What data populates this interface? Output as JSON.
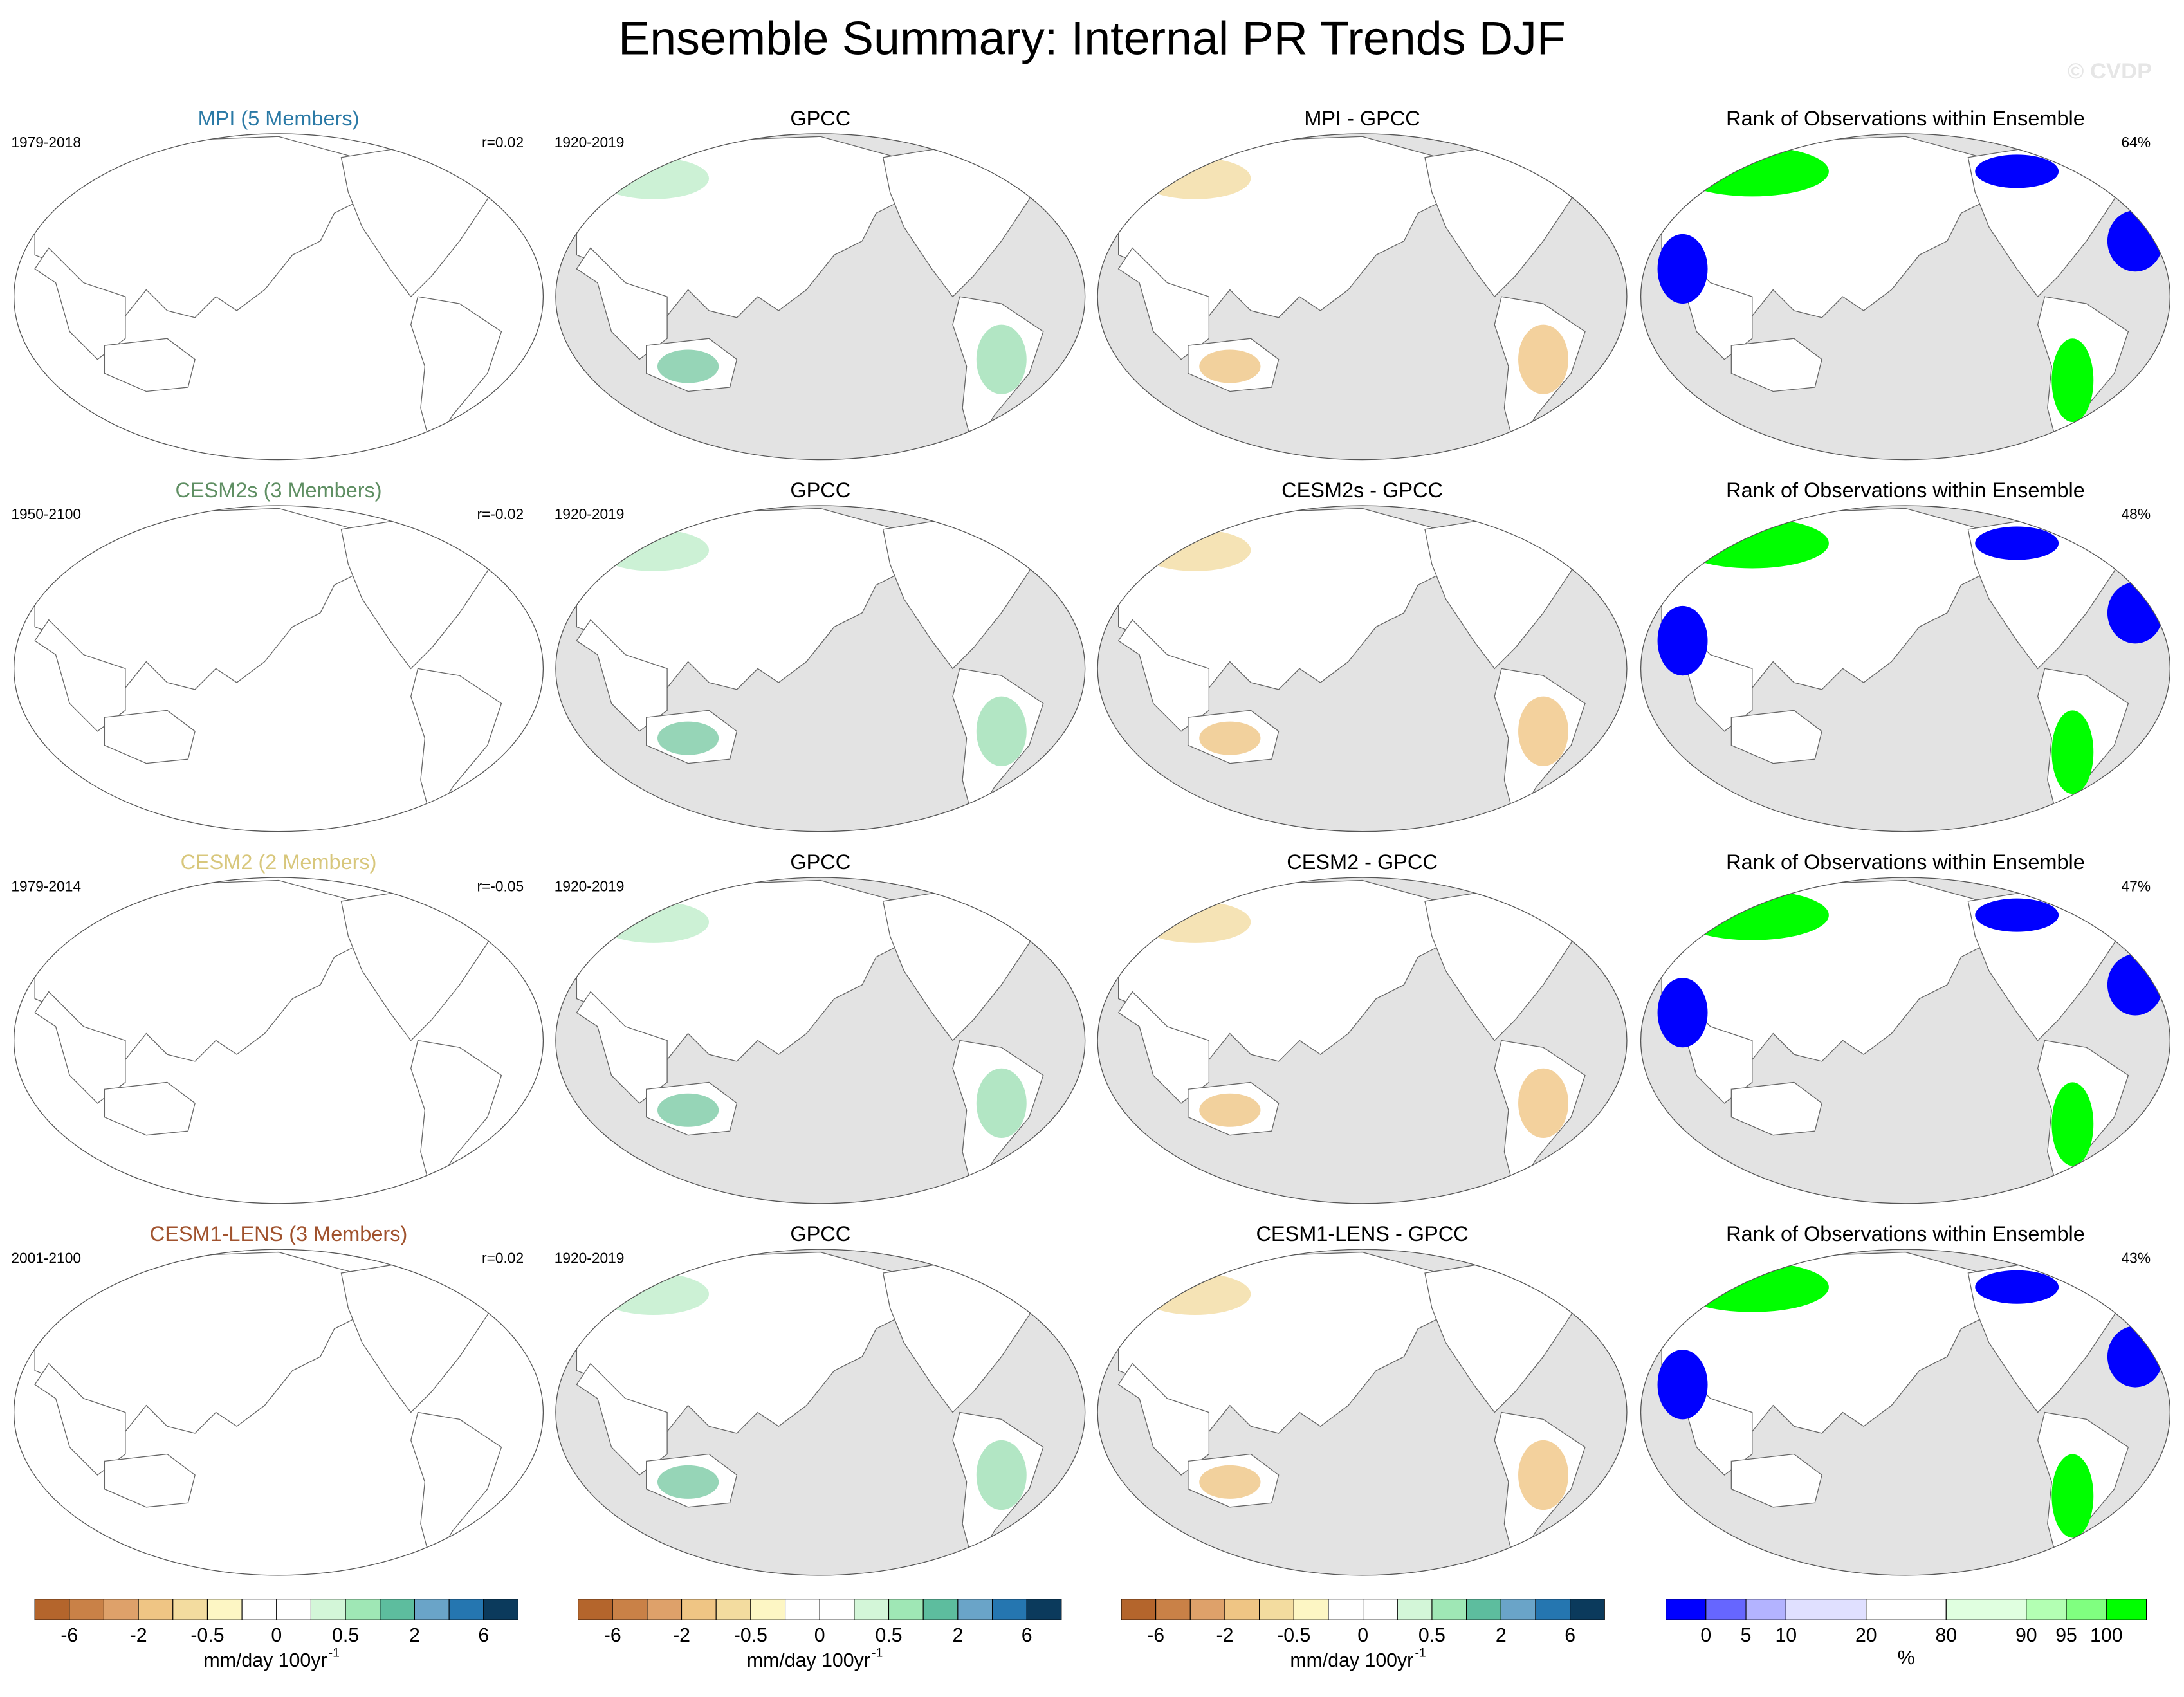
{
  "title": "Ensemble Summary: Internal PR Trends DJF",
  "watermark": "© CVDP",
  "rows": [
    {
      "model": "MPI (5 Members)",
      "model_color": "#2b7aa6",
      "period": "1979-2018",
      "r": "r=0.02",
      "obs": "GPCC",
      "obs_period": "1920-2019",
      "diff": "MPI - GPCC",
      "rank_title": "Rank of Observations within Ensemble",
      "rank": "64%"
    },
    {
      "model": "CESM2s (3 Members)",
      "model_color": "#5f8f63",
      "period": "1950-2100",
      "r": "r=-0.02",
      "obs": "GPCC",
      "obs_period": "1920-2019",
      "diff": "CESM2s - GPCC",
      "rank_title": "Rank of Observations within Ensemble",
      "rank": "48%"
    },
    {
      "model": "CESM2 (2 Members)",
      "model_color": "#d8c77c",
      "period": "1979-2014",
      "r": "r=-0.05",
      "obs": "GPCC",
      "obs_period": "1920-2019",
      "diff": "CESM2 - GPCC",
      "rank_title": "Rank of Observations within Ensemble",
      "rank": "47%"
    },
    {
      "model": "CESM1-LENS (3 Members)",
      "model_color": "#a0522d",
      "period": "2001-2100",
      "r": "r=0.02",
      "obs": "GPCC",
      "obs_period": "1920-2019",
      "diff": "CESM1-LENS - GPCC",
      "rank_title": "Rank of Observations within Ensemble",
      "rank": "43%"
    }
  ],
  "colorbars": [
    {
      "colors": [
        "#b4652c",
        "#c98147",
        "#dea16a",
        "#efc584",
        "#f3dc9f",
        "#fdf6c4",
        "#ffffff",
        "#ffffff",
        "#d3f6d8",
        "#9fe7b5",
        "#5dbd9e",
        "#6aa4c8",
        "#2576b0",
        "#0b3a5c"
      ],
      "ticks": [
        -6,
        -2,
        -0.5,
        0,
        0.5,
        2,
        6
      ],
      "unit": "mm/day 100yr",
      "unit_sup": "-1"
    },
    {
      "colors": [
        "#b4652c",
        "#c98147",
        "#dea16a",
        "#efc584",
        "#f3dc9f",
        "#fdf6c4",
        "#ffffff",
        "#ffffff",
        "#d3f6d8",
        "#9fe7b5",
        "#5dbd9e",
        "#6aa4c8",
        "#2576b0",
        "#0b3a5c"
      ],
      "ticks": [
        -6,
        -2,
        -0.5,
        0,
        0.5,
        2,
        6
      ],
      "unit": "mm/day 100yr",
      "unit_sup": "-1"
    },
    {
      "colors": [
        "#b4652c",
        "#c98147",
        "#dea16a",
        "#efc584",
        "#f3dc9f",
        "#fdf6c4",
        "#ffffff",
        "#ffffff",
        "#d3f6d8",
        "#9fe7b5",
        "#5dbd9e",
        "#6aa4c8",
        "#2576b0",
        "#0b3a5c"
      ],
      "ticks": [
        -6,
        -2,
        -0.5,
        0,
        0.5,
        2,
        6
      ],
      "unit": "mm/day 100yr",
      "unit_sup": "-1"
    },
    {
      "colors": [
        "#0000ff",
        "#6666ff",
        "#b3b3ff",
        "#e0e0ff",
        "#ffffff",
        "#e0ffe0",
        "#b3ffb3",
        "#80ff80",
        "#00ff00"
      ],
      "ticks": [
        0,
        5,
        10,
        20,
        80,
        90,
        95,
        100
      ],
      "unit": "%"
    }
  ]
}
